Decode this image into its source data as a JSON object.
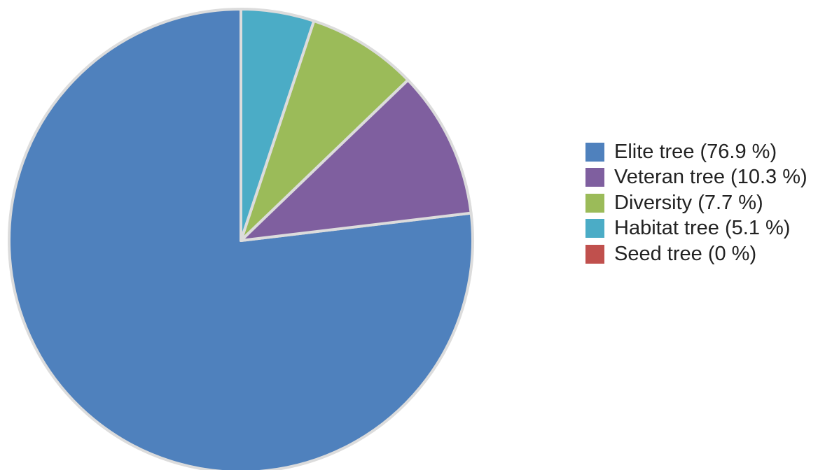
{
  "chart_data": {
    "type": "pie",
    "title": "",
    "start_angle_deg": 0,
    "direction": "counterclockwise",
    "slice_border_color": "#dcdcdc",
    "slices": [
      {
        "label": "Elite tree",
        "value": 76.9,
        "legend_text": "Elite tree (76.9 %)",
        "color": "#4f81bd"
      },
      {
        "label": "Veteran tree",
        "value": 10.3,
        "legend_text": "Veteran tree (10.3 %)",
        "color": "#7f5f9f"
      },
      {
        "label": "Diversity",
        "value": 7.7,
        "legend_text": "Diversity (7.7 %)",
        "color": "#9bbb59"
      },
      {
        "label": "Habitat tree",
        "value": 5.1,
        "legend_text": "Habitat tree (5.1 %)",
        "color": "#4bacc6"
      },
      {
        "label": "Seed tree",
        "value": 0,
        "legend_text": "Seed tree (0 %)",
        "color": "#c0504d"
      }
    ],
    "legend_position": "right"
  }
}
